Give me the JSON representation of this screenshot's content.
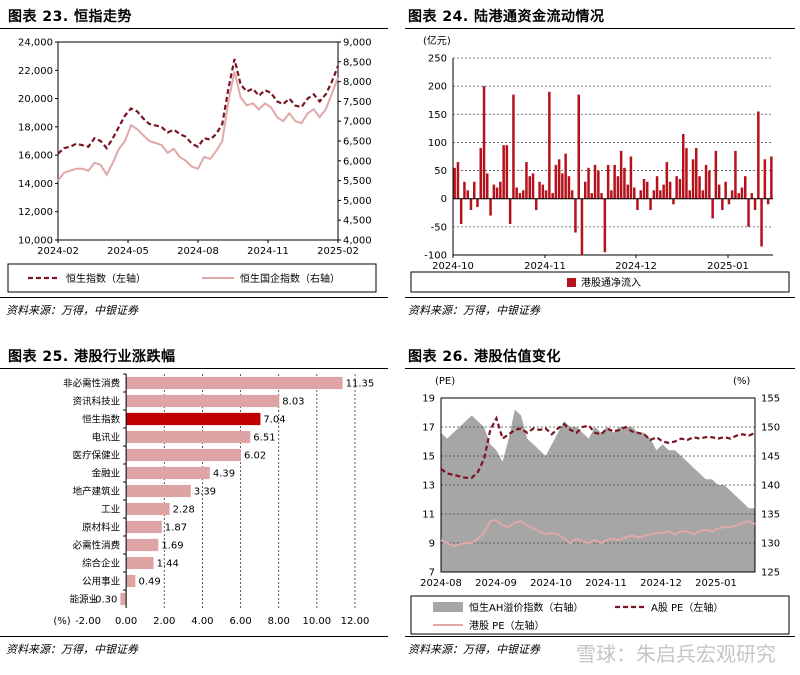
{
  "panels": {
    "p23": {
      "title": "图表 23. 恒指走势",
      "source": "资料来源：万得，中银证券"
    },
    "p24": {
      "title": "图表 24. 陆港通资金流动情况",
      "source": "资料来源：万得，中银证券"
    },
    "p25": {
      "title": "图表 25. 港股行业涨跌幅",
      "source": "资料来源：万得，中银证券"
    },
    "p26": {
      "title": "图表 26. 港股估值变化",
      "source": "资料来源：万得，中银证券"
    }
  },
  "watermark": "雪球：朱启兵宏观研究",
  "colors": {
    "dark_red": "#7b1421",
    "pink": "#e0a8a8",
    "bar_red": "#b5121b",
    "bar_pink": "#dea3a3",
    "gray_area": "#a6a6a6",
    "bar_hl": "#c00000"
  },
  "chart_data": [
    {
      "id": "hsi",
      "type": "line",
      "x_ticks": [
        "2024-02",
        "2024-05",
        "2024-08",
        "2024-11",
        "2025-02"
      ],
      "y_left_ticks": [
        "10,000",
        "12,000",
        "14,000",
        "16,000",
        "18,000",
        "20,000",
        "22,000",
        "24,000"
      ],
      "y_right_ticks": [
        "4,000",
        "4,500",
        "5,000",
        "5,500",
        "6,000",
        "6,500",
        "7,000",
        "7,500",
        "8,000",
        "8,500",
        "9,000"
      ],
      "ylim_left": [
        10000,
        24000
      ],
      "ylim_right": [
        4000,
        9000
      ],
      "series": [
        {
          "name": "恒生指数（左轴）",
          "axis": "left",
          "style": "dashed",
          "values": [
            16100,
            16500,
            16600,
            16800,
            16700,
            16600,
            17200,
            17000,
            16500,
            17200,
            18000,
            18800,
            19300,
            19100,
            18600,
            18200,
            18100,
            18000,
            17600,
            17800,
            17500,
            17300,
            16800,
            16600,
            17200,
            17100,
            17500,
            18200,
            20700,
            22800,
            21000,
            20500,
            20700,
            20200,
            20600,
            20400,
            19800,
            19600,
            20000,
            19500,
            19400,
            20000,
            20300,
            19800,
            20300,
            21200,
            22300
          ]
        },
        {
          "name": "恒生国企指数（右轴）",
          "axis": "right",
          "style": "solid",
          "values": [
            5500,
            5700,
            5750,
            5800,
            5800,
            5750,
            5950,
            5900,
            5650,
            5950,
            6300,
            6500,
            6900,
            6800,
            6650,
            6500,
            6450,
            6400,
            6200,
            6300,
            6100,
            6000,
            5850,
            5800,
            6100,
            6050,
            6250,
            6500,
            7500,
            8250,
            7600,
            7400,
            7450,
            7300,
            7450,
            7350,
            7100,
            7000,
            7200,
            7000,
            6950,
            7200,
            7300,
            7100,
            7300,
            7700,
            8100
          ]
        }
      ]
    },
    {
      "id": "connect",
      "type": "bar",
      "unit_label": "(亿元)",
      "x_ticks": [
        "2024-10",
        "2024-11",
        "2024-12",
        "2025-01"
      ],
      "ylim": [
        -100,
        250
      ],
      "y_ticks": [
        "-100",
        "-50",
        "0",
        "50",
        "100",
        "150",
        "200",
        "250"
      ],
      "series": [
        {
          "name": "港股通净流入",
          "values": [
            55,
            65,
            -45,
            30,
            15,
            -20,
            30,
            -15,
            90,
            200,
            45,
            -30,
            25,
            20,
            30,
            95,
            95,
            -45,
            185,
            20,
            10,
            15,
            65,
            40,
            45,
            -20,
            30,
            25,
            15,
            190,
            10,
            60,
            70,
            45,
            80,
            40,
            15,
            -60,
            185,
            -100,
            30,
            55,
            10,
            60,
            50,
            10,
            -95,
            60,
            15,
            60,
            40,
            85,
            55,
            25,
            75,
            20,
            -20,
            15,
            35,
            30,
            -20,
            15,
            40,
            15,
            25,
            65,
            30,
            -10,
            40,
            35,
            115,
            90,
            15,
            70,
            90,
            40,
            15,
            60,
            50,
            -35,
            85,
            25,
            -20,
            30,
            -10,
            15,
            85,
            10,
            20,
            40,
            -50,
            10,
            -20,
            155,
            -85,
            70,
            -10,
            75
          ]
        }
      ]
    },
    {
      "id": "sectors",
      "type": "bar",
      "orientation": "horizontal",
      "categories": [
        "非必需性消费",
        "资讯科技业",
        "恒生指数",
        "电讯业",
        "医疗保健业",
        "金融业",
        "地产建筑业",
        "工业",
        "原材料业",
        "必需性消费",
        "综合企业",
        "公用事业",
        "能源业"
      ],
      "values": [
        11.35,
        8.03,
        7.04,
        6.51,
        6.02,
        4.39,
        3.39,
        2.28,
        1.87,
        1.69,
        1.44,
        0.49,
        -0.3
      ],
      "value_labels": [
        "11.35",
        "8.03",
        "7.04",
        "6.51",
        "6.02",
        "4.39",
        "3.39",
        "2.28",
        "1.87",
        "1.69",
        "1.44",
        "0.49",
        "-0.30"
      ],
      "x_ticks": [
        "-2.00",
        "0.00",
        "2.00",
        "4.00",
        "6.00",
        "8.00",
        "10.00",
        "12.00"
      ],
      "xlim": [
        -2,
        12
      ],
      "unit_label": "(%)",
      "highlight": "恒生指数"
    },
    {
      "id": "valuation",
      "type": "line",
      "x_ticks": [
        "2024-08",
        "2024-09",
        "2024-10",
        "2024-11",
        "2024-12",
        "2025-01"
      ],
      "y_left_ticks": [
        "7",
        "9",
        "11",
        "13",
        "15",
        "17",
        "19"
      ],
      "y_right_ticks": [
        "125",
        "130",
        "135",
        "140",
        "145",
        "150",
        "155"
      ],
      "ylim_left": [
        7,
        19
      ],
      "ylim_right": [
        125,
        155
      ],
      "left_unit": "(PE)",
      "right_unit": "(%)",
      "series": [
        {
          "name": "恒生AH溢价指数（右轴）",
          "axis": "right",
          "style": "area",
          "values": [
            149,
            148,
            149,
            150,
            151,
            152,
            151,
            150,
            147,
            146,
            144,
            148,
            153,
            152,
            148,
            147,
            146,
            145,
            147,
            149,
            151,
            150,
            150,
            149,
            148,
            150,
            149,
            150,
            149,
            150,
            150,
            150,
            149,
            149,
            148,
            146,
            147,
            146,
            146,
            145,
            144,
            143,
            142,
            141,
            141,
            140,
            140,
            139,
            138,
            137,
            136,
            136
          ]
        },
        {
          "name": "A股 PE（左轴）",
          "axis": "left",
          "style": "dashed",
          "values": [
            14.1,
            13.8,
            13.7,
            13.6,
            13.5,
            13.5,
            13.9,
            14.8,
            16.8,
            17.6,
            16.2,
            16.5,
            16.8,
            16.9,
            16.6,
            16.9,
            16.8,
            16.9,
            16.5,
            16.9,
            17.2,
            16.8,
            16.6,
            17.0,
            17.1,
            16.6,
            16.5,
            16.9,
            16.7,
            16.8,
            17.0,
            16.7,
            16.6,
            16.5,
            16.1,
            16.3,
            16.0,
            15.9,
            16.0,
            16.2,
            16.1,
            16.3,
            16.2,
            16.3,
            16.3,
            16.2,
            16.3,
            16.2,
            16.4,
            16.5,
            16.4,
            16.6
          ]
        },
        {
          "name": "港股 PE（左轴）",
          "axis": "left",
          "style": "solid",
          "values": [
            9.2,
            9.0,
            8.8,
            8.9,
            9.0,
            9.0,
            9.3,
            9.7,
            10.5,
            10.6,
            10.2,
            10.1,
            10.4,
            10.5,
            10.2,
            10.0,
            9.8,
            9.6,
            9.7,
            9.6,
            9.3,
            9.0,
            9.3,
            9.1,
            9.0,
            9.2,
            9.0,
            9.2,
            9.3,
            9.2,
            9.4,
            9.5,
            9.4,
            9.5,
            9.6,
            9.7,
            9.7,
            9.8,
            9.6,
            9.8,
            9.8,
            9.6,
            9.8,
            9.9,
            9.8,
            10.0,
            10.1,
            10.1,
            10.2,
            10.4,
            10.5,
            10.3
          ]
        }
      ]
    }
  ]
}
